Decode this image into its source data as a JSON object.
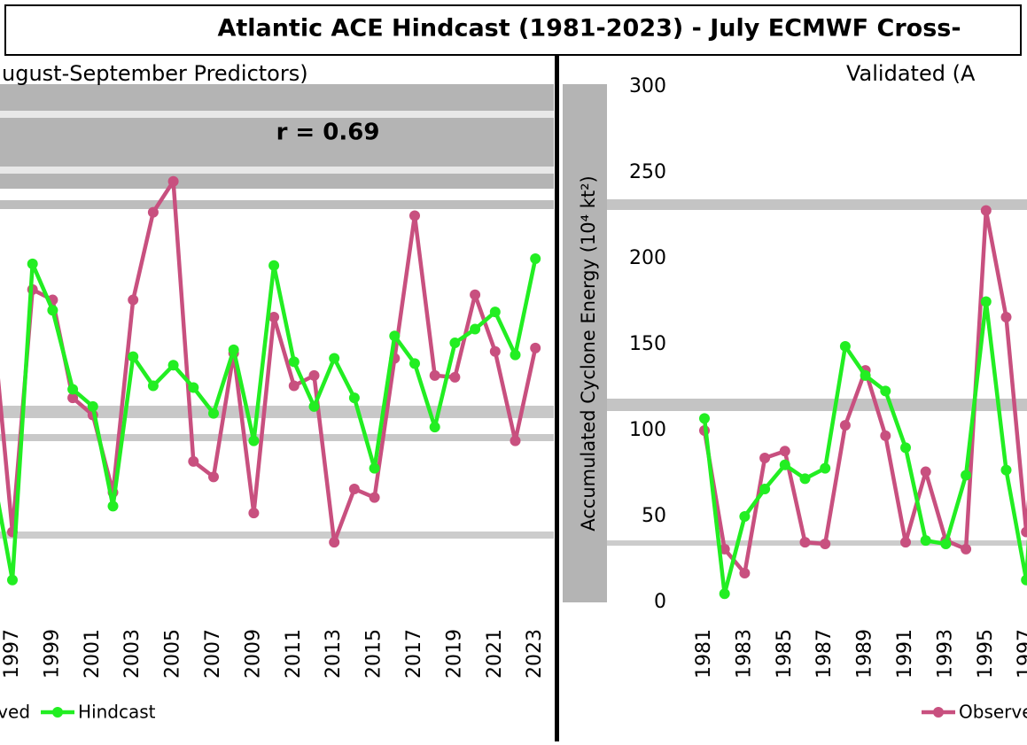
{
  "chart_data": {
    "type": "line",
    "title": "Atlantic ACE Hindcast (1981-2023) - July ECMWF Cross-",
    "subtitle_left": "ugust-September Predictors)",
    "subtitle_right": "Validated (A",
    "annotation": "r = 0.69",
    "y_label": "Accumulated Cyclone Energy (10⁴ kt²)",
    "x": [
      1981,
      1982,
      1983,
      1984,
      1985,
      1986,
      1987,
      1988,
      1989,
      1990,
      1991,
      1992,
      1993,
      1994,
      1995,
      1996,
      1997,
      1998,
      1999,
      2000,
      2001,
      2002,
      2003,
      2004,
      2005,
      2006,
      2007,
      2008,
      2009,
      2010,
      2011,
      2012,
      2013,
      2014,
      2015,
      2016,
      2017,
      2018,
      2019,
      2020,
      2021,
      2022,
      2023
    ],
    "xticks": [
      1981,
      1983,
      1985,
      1987,
      1989,
      1991,
      1993,
      1995,
      1997,
      1999,
      2001,
      2003,
      2005,
      2007,
      2009,
      2011,
      2013,
      2015,
      2017,
      2019,
      2021,
      2023
    ],
    "ylim": [
      0,
      300
    ],
    "yticks": [
      0,
      50,
      100,
      150,
      200,
      250,
      300
    ],
    "series": [
      {
        "name": "Observed",
        "color": "#c8507f",
        "values": [
          100,
          31,
          17,
          84,
          88,
          35,
          34,
          103,
          135,
          97,
          35,
          76,
          36,
          31,
          228,
          166,
          41,
          182,
          176,
          119,
          109,
          64,
          176,
          227,
          245,
          82,
          73,
          145,
          52,
          166,
          126,
          132,
          35,
          66,
          61,
          142,
          225,
          132,
          131,
          179,
          146,
          94,
          148
        ]
      },
      {
        "name": "Hindcast",
        "color": "#22ee22",
        "values": [
          107,
          5,
          50,
          66,
          80,
          72,
          78,
          149,
          132,
          123,
          90,
          36,
          34,
          74,
          175,
          77,
          13,
          197,
          170,
          124,
          114,
          56,
          143,
          126,
          138,
          125,
          110,
          147,
          94,
          196,
          140,
          114,
          142,
          119,
          78,
          155,
          139,
          102,
          151,
          159,
          169,
          144,
          200
        ]
      }
    ]
  }
}
